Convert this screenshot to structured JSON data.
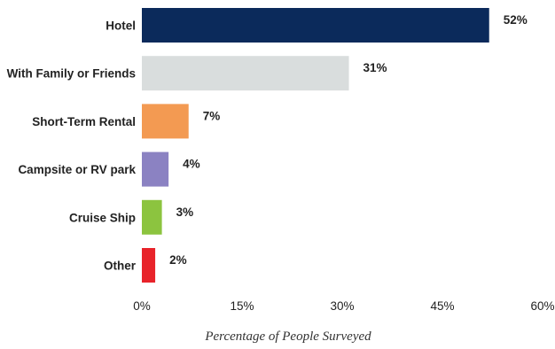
{
  "chart_data": {
    "type": "bar",
    "orientation": "horizontal",
    "categories": [
      "Hotel",
      "With Family or Friends",
      "Short-Term Rental",
      "Campsite or RV park",
      "Cruise Ship",
      "Other"
    ],
    "values": [
      52,
      31,
      7,
      4,
      3,
      2
    ],
    "value_labels": [
      "52%",
      "31%",
      "7%",
      "4%",
      "3%",
      "2%"
    ],
    "colors": [
      "#0b2a5b",
      "#d9dddd",
      "#f39a52",
      "#8b82c2",
      "#8cc43f",
      "#e8232a"
    ],
    "xlabel": "Percentage of People Surveyed",
    "xlim": [
      0,
      60
    ],
    "x_ticks": [
      0,
      15,
      30,
      45,
      60
    ],
    "x_tick_labels": [
      "0%",
      "15%",
      "30%",
      "45%",
      "60%"
    ],
    "grid": false
  }
}
